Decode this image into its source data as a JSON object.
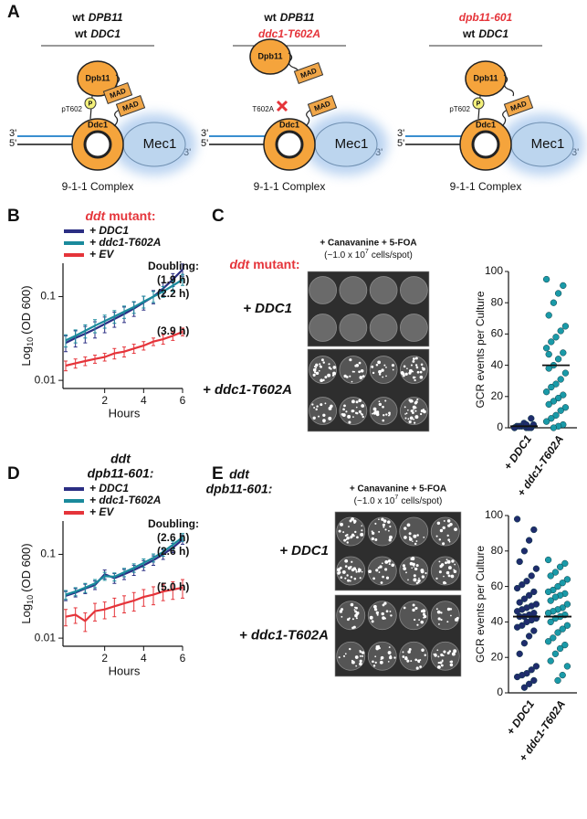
{
  "panel_labels": [
    "A",
    "B",
    "C",
    "D",
    "E"
  ],
  "diagram": [
    {
      "header": [
        {
          "prefix": "wt",
          "gene": "DPB11"
        },
        {
          "prefix": "wt",
          "gene": "DDC1"
        }
      ],
      "bound": true,
      "dpb11": "Dpb11",
      "dpb11_mad": "MAD",
      "ddc1": "Ddc1",
      "ddc1_mad": "MAD",
      "mec1": "Mec1",
      "site": "pT602",
      "phospho": "P",
      "strand_left": [
        "3'",
        "5'"
      ],
      "strand_right": "3'",
      "complex": "9-1-1 Complex"
    },
    {
      "header": [
        {
          "prefix": "wt",
          "gene": "DPB11"
        },
        {
          "gene": "ddc1-T602A",
          "color": "#e5343a"
        }
      ],
      "bound": false,
      "dpb11": "Dpb11",
      "dpb11_mad": "MAD",
      "ddc1": "Ddc1",
      "ddc1_mad": "MAD",
      "mec1": "Mec1",
      "site": "T602A",
      "site_color": "#e5343a",
      "strand_left": [
        "3'",
        "5'"
      ],
      "strand_right": "3'",
      "complex": "9-1-1 Complex"
    },
    {
      "header": [
        {
          "gene": "dpb11-601",
          "color": "#e5343a"
        },
        {
          "prefix": "wt",
          "gene": "DDC1"
        }
      ],
      "bound": true,
      "dpb11": "Dpb11",
      "ddc1": "Ddc1",
      "ddc1_mad": "MAD",
      "mec1": "Mec1",
      "site": "pT602",
      "phospho": "P",
      "strand_left": [
        "3'",
        "5'"
      ],
      "strand_right": "3'",
      "complex": "9-1-1 Complex"
    }
  ],
  "plate_panels": [
    {
      "title_parts": [
        "ddt",
        "mutant:"
      ],
      "title_color": "#e5343a",
      "header": "+ Canavanine + 5-FOA",
      "density": {
        "text": "(~1.0 x 10",
        "sup": "7",
        "rest": "cells/spot)"
      },
      "rows": [
        "+ DDC1",
        "+ ddc1-T602A"
      ],
      "row_colors": [
        "#2b2d7c",
        "#2b8fd0"
      ]
    },
    {
      "title_lines": [
        "ddt",
        "dpb11-601:"
      ],
      "title_color": "#e5343a",
      "header": "+ Canavanine + 5-FOA",
      "density": {
        "text": "(~1.0 x 10",
        "sup": "7",
        "rest": "cells/spot)"
      },
      "rows": [
        "+ DDC1",
        "+ ddc1-T602A"
      ],
      "row_colors": [
        "#2b2d7c",
        "#2b8fd0"
      ]
    }
  ],
  "chart_data": [
    {
      "type": "line",
      "title_parts": [
        "ddt",
        "mutant:"
      ],
      "title_color": "#e5343a",
      "ylabel": {
        "text": "Log",
        "sub": "10",
        "rest": "(OD 600)"
      },
      "xlabel": "Hours",
      "annotation_title": "Doubling:",
      "log_y": true,
      "ylim": [
        0.008,
        0.25
      ],
      "yticks": [
        0.01,
        0.1
      ],
      "xlim": [
        0,
        6
      ],
      "xticks": [
        2,
        4,
        6
      ],
      "x": [
        0,
        0.5,
        1,
        1.5,
        2,
        2.5,
        3,
        3.5,
        4,
        4.5,
        5,
        5.5,
        6
      ],
      "series": [
        {
          "name": "+ DDC1",
          "color": "#2b2e83",
          "annotation": "(1.9 h)",
          "values": [
            0.028,
            0.032,
            0.036,
            0.041,
            0.047,
            0.054,
            0.062,
            0.072,
            0.085,
            0.1,
            0.125,
            0.16,
            0.21
          ],
          "errors": [
            0.006,
            0.007,
            0.008,
            0.009,
            0.01,
            0.011,
            0.013,
            0.014,
            0.016,
            0.018,
            0.022,
            0.028,
            0.035
          ]
        },
        {
          "name": "+ ddc1-T602A",
          "color": "#1a8a9c",
          "annotation": "(2.2 h)",
          "values": [
            0.03,
            0.034,
            0.039,
            0.045,
            0.051,
            0.058,
            0.066,
            0.075,
            0.087,
            0.1,
            0.115,
            0.135,
            0.16
          ],
          "errors": [
            0.005,
            0.006,
            0.007,
            0.008,
            0.009,
            0.01,
            0.011,
            0.012,
            0.014,
            0.015,
            0.017,
            0.02,
            0.024
          ]
        },
        {
          "name": "+ EV",
          "color": "#e5343a",
          "annotation": "(3.9 h)",
          "values": [
            0.015,
            0.016,
            0.017,
            0.018,
            0.019,
            0.021,
            0.022,
            0.024,
            0.026,
            0.029,
            0.031,
            0.034,
            0.038
          ],
          "errors": [
            0.002,
            0.002,
            0.002,
            0.002,
            0.002,
            0.003,
            0.003,
            0.003,
            0.003,
            0.003,
            0.004,
            0.004,
            0.004
          ]
        }
      ]
    },
    {
      "type": "strip",
      "ylabel": "GCR events per Culture",
      "ylim": [
        0,
        100
      ],
      "yticks": [
        0,
        20,
        40,
        60,
        80,
        100
      ],
      "categories": [
        "+ DDC1",
        "+ ddc1-T602A"
      ],
      "category_colors": [
        "#2b2d7c",
        "#2b8fd0"
      ],
      "center_lines": [
        1,
        40
      ],
      "series": [
        {
          "color": "#1f2c6d",
          "values": [
            0,
            0,
            0,
            1,
            1,
            2,
            0,
            3,
            1,
            0,
            6,
            2
          ]
        },
        {
          "color": "#1a9aa8",
          "values": [
            95,
            91,
            86,
            80,
            72,
            65,
            62,
            58,
            55,
            51,
            48,
            44,
            40,
            38,
            35,
            31,
            28,
            26,
            23,
            21,
            19,
            17,
            15,
            13,
            11,
            8,
            6,
            4,
            2,
            1,
            0,
            47
          ]
        }
      ]
    },
    {
      "type": "line",
      "title_lines": [
        "ddt",
        "dpb11-601:"
      ],
      "title_color": "#e5343a",
      "ylabel": {
        "text": "Log",
        "sub": "10",
        "rest": "(OD 600)"
      },
      "xlabel": "Hours",
      "annotation_title": "Doubling:",
      "log_y": true,
      "ylim": [
        0.008,
        0.25
      ],
      "yticks": [
        0.01,
        0.1
      ],
      "xlim": [
        0,
        6
      ],
      "xticks": [
        2,
        4,
        6
      ],
      "x": [
        0,
        0.5,
        1,
        1.5,
        2,
        2.5,
        3,
        3.5,
        4,
        4.5,
        5,
        5.5,
        6
      ],
      "series": [
        {
          "name": "+ DDC1",
          "color": "#2b2e83",
          "annotation": "(2.6 h)",
          "values": [
            0.032,
            0.035,
            0.039,
            0.043,
            0.058,
            0.052,
            0.058,
            0.065,
            0.074,
            0.085,
            0.1,
            0.12,
            0.15
          ],
          "errors": [
            0.004,
            0.004,
            0.005,
            0.005,
            0.007,
            0.007,
            0.008,
            0.009,
            0.01,
            0.011,
            0.013,
            0.015,
            0.018
          ]
        },
        {
          "name": "+ ddc1-T602A",
          "color": "#1a8a9c",
          "annotation": "(2.6 h)",
          "values": [
            0.033,
            0.036,
            0.04,
            0.045,
            0.055,
            0.054,
            0.061,
            0.069,
            0.079,
            0.091,
            0.107,
            0.13,
            0.16
          ],
          "errors": [
            0.004,
            0.004,
            0.005,
            0.005,
            0.006,
            0.006,
            0.007,
            0.008,
            0.009,
            0.01,
            0.012,
            0.014,
            0.017
          ]
        },
        {
          "name": "+ EV",
          "color": "#e5343a",
          "annotation": "(5.0 h)",
          "values": [
            0.018,
            0.019,
            0.016,
            0.021,
            0.022,
            0.024,
            0.026,
            0.028,
            0.031,
            0.033,
            0.036,
            0.038,
            0.04
          ],
          "errors": [
            0.004,
            0.004,
            0.004,
            0.005,
            0.005,
            0.006,
            0.006,
            0.007,
            0.007,
            0.008,
            0.008,
            0.009,
            0.01
          ]
        }
      ]
    },
    {
      "type": "strip",
      "ylabel": "GCR events per Culture",
      "ylim": [
        0,
        100
      ],
      "yticks": [
        0,
        20,
        40,
        60,
        80,
        100
      ],
      "categories": [
        "+ DDC1",
        "+ ddc1-T602A"
      ],
      "category_colors": [
        "#2b2d7c",
        "#2b8fd0"
      ],
      "center_lines": [
        43,
        43
      ],
      "series": [
        {
          "color": "#1f2c6d",
          "values": [
            98,
            92,
            86,
            80,
            74,
            70,
            66,
            63,
            61,
            59,
            57,
            55,
            53,
            51,
            50,
            49,
            48,
            47,
            46,
            45,
            44,
            43,
            43,
            42,
            41,
            40,
            38,
            37,
            35,
            32,
            28,
            22,
            15,
            13,
            11,
            10,
            9,
            7,
            5,
            3
          ]
        },
        {
          "color": "#1a9aa8",
          "values": [
            75,
            73,
            71,
            68,
            66,
            64,
            62,
            60,
            58,
            57,
            56,
            55,
            54,
            52,
            50,
            48,
            47,
            46,
            45,
            44,
            43,
            42,
            40,
            38,
            36,
            34,
            31,
            29,
            27,
            25,
            22,
            18,
            15,
            10,
            7
          ]
        }
      ]
    }
  ]
}
